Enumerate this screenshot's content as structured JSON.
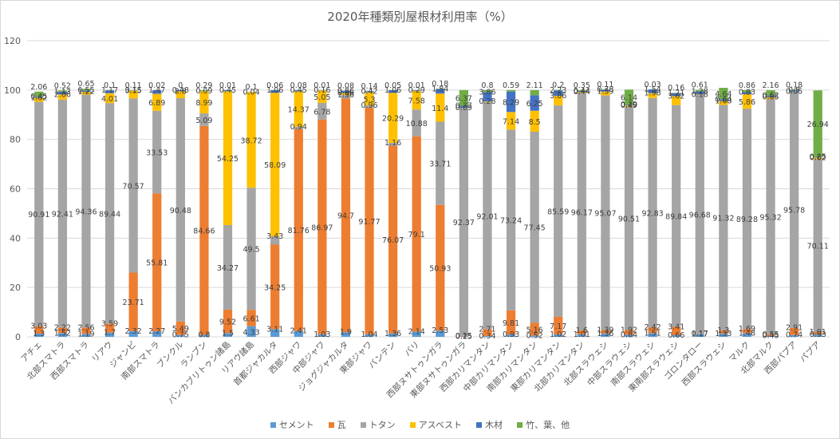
{
  "chart_data": {
    "type": "bar",
    "stacked": true,
    "title": "2020年種類別屋根材利用率（%）",
    "xlabel": "",
    "ylabel": "",
    "ylim": [
      0,
      120
    ],
    "yticks": [
      0,
      20,
      40,
      60,
      80,
      100,
      120
    ],
    "grid": true,
    "legend_position": "bottom",
    "categories": [
      "アチェ",
      "北部スマトラ",
      "西部スマトラ",
      "リアウ",
      "ジャンビ",
      "南部スマトラ",
      "ブンクル",
      "ランプン",
      "バンカブリトゥン諸島",
      "リアウ諸島",
      "首都ジャカルタ",
      "西部ジャワ",
      "中部ジャワ",
      "ジョグジャカルタ",
      "東部ジャワ",
      "バンテン",
      "バリ",
      "西部ヌサトゥンガラ",
      "東部ヌサトゥンガラ",
      "西部カリマンタン",
      "中部カリマンタン",
      "南部カリマンタン",
      "東部カリマンタン",
      "北部カリマンタン",
      "北部スラウェシ",
      "中部スラウェシ",
      "南部スラウェシ",
      "東南部スラウェシ",
      "ゴロンタロー",
      "西部スラウェシ",
      "マルク",
      "北部マルク",
      "西部パプア",
      "パプア"
    ],
    "series": [
      {
        "name": "セメント",
        "color": "#5b9bd5",
        "values": [
          1.3,
          1.52,
          1.19,
          1.7,
          2.32,
          2.27,
          0.75,
          0.8,
          1.5,
          4.33,
          3.11,
          2.41,
          1.03,
          1.9,
          1.04,
          1.36,
          2.14,
          2.53,
          0.15,
          0.34,
          0.93,
          0.52,
          1.02,
          1.01,
          1.36,
          0.84,
          1.51,
          0.66,
          1.17,
          1.33,
          1.48,
          0.45,
          0.74,
          0.93
        ]
      },
      {
        "name": "瓦",
        "color": "#ed7d31",
        "values": [
          3.03,
          2.22,
          2.56,
          3.59,
          23.71,
          55.81,
          5.49,
          84.66,
          9.52,
          6.61,
          34.25,
          81.76,
          86.97,
          94.7,
          91.77,
          76.07,
          79.1,
          50.93,
          0.25,
          2.71,
          9.81,
          5.16,
          7.17,
          1.6,
          1.39,
          1.92,
          2.42,
          3.41,
          0.17,
          1.3,
          1.69,
          0.55,
          2.91,
          1.01
        ]
      },
      {
        "name": "トタン",
        "color": "#a5a5a5",
        "values": [
          90.91,
          92.41,
          94.36,
          89.44,
          70.57,
          33.53,
          90.48,
          5.09,
          34.27,
          49.5,
          3.43,
          0.94,
          6.78,
          1.36,
          0.96,
          1.16,
          10.88,
          33.71,
          92.37,
          92.01,
          73.24,
          77.45,
          85.59,
          96.17,
          95.07,
          90.51,
          92.83,
          89.84,
          96.68,
          91.32,
          89.28,
          95.32,
          95.78,
          70.11
        ]
      },
      {
        "name": "アスベスト",
        "color": "#ffc000",
        "values": [
          1.62,
          2.06,
          1.22,
          4.01,
          3.15,
          6.89,
          2.8,
          8.99,
          54.25,
          38.72,
          58.09,
          14.37,
          5.05,
          0.86,
          5.3,
          20.29,
          7.58,
          11.4,
          0.09,
          0.28,
          7.14,
          8.5,
          3.86,
          0.44,
          1.59,
          0.49,
          1.98,
          3.62,
          0.18,
          1.68,
          5.86,
          0.85,
          0.05,
          0.62
        ]
      },
      {
        "name": "木材",
        "color": "#4472c4",
        "values": [
          0.45,
          1.13,
          0.55,
          1.17,
          0.15,
          1.47,
          0.48,
          0.09,
          0.45,
          0.04,
          1.06,
          0.45,
          0.16,
          0.86,
          0.42,
          1.06,
          0.29,
          1.84,
          0.77,
          3.86,
          8.29,
          6.25,
          2.23,
          0.44,
          0.78,
          0.29,
          1.54,
          1.21,
          1.28,
          0.64,
          0.83,
          0.62,
          0.5,
          0.25
        ]
      },
      {
        "name": "竹、葉、他",
        "color": "#70ad47",
        "values": [
          2.06,
          0.52,
          0.65,
          0.1,
          0.11,
          0.02,
          0.0,
          0.29,
          0.01,
          0.1,
          0.06,
          0.08,
          0.01,
          0.08,
          0.14,
          0.05,
          0.01,
          0.18,
          6.37,
          0.8,
          0.59,
          2.11,
          0.2,
          0.35,
          0.11,
          6.14,
          0.03,
          0.16,
          0.61,
          4.64,
          0.86,
          2.16,
          0.18,
          26.94
        ]
      }
    ]
  }
}
